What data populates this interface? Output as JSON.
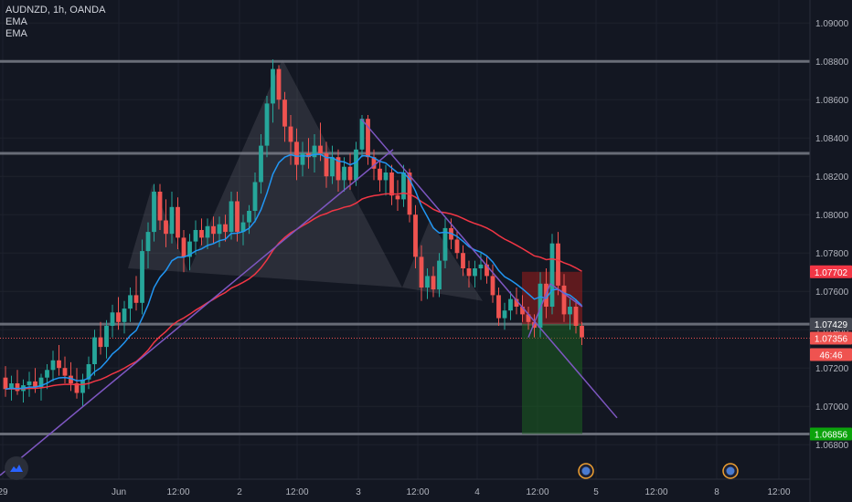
{
  "legend": {
    "symbol": "AUDNZD, 1h, OANDA",
    "ind1": "EMA",
    "ind2": "EMA"
  },
  "colors": {
    "background": "#131722",
    "up": "#26a69a",
    "down": "#ef5350",
    "ema_fast": "#2196f3",
    "ema_slow": "#f23645",
    "trendline": "#7e57c2",
    "level": "#787b86",
    "target_zone": "#1b5e20",
    "stop_zone": "#7f1d1d",
    "pattern": "#9598a1"
  },
  "chart_data": {
    "type": "candlestick",
    "symbol": "AUDNZD",
    "interval": "1h",
    "broker": "OANDA",
    "ylim": [
      1.0662,
      1.0912
    ],
    "y_ticks": [
      "1.09000",
      "1.08800",
      "1.08600",
      "1.08400",
      "1.08200",
      "1.08000",
      "1.07800",
      "1.07600",
      "1.07400",
      "1.07200",
      "1.07000",
      "1.06800"
    ],
    "x_ticks": [
      "29",
      "Jun",
      "12:00",
      "2",
      "12:00",
      "3",
      "12:00",
      "4",
      "12:00",
      "5",
      "12:00",
      "8",
      "12:00"
    ],
    "candles": [
      [
        1.0715,
        1.0721,
        1.0705,
        1.0709
      ],
      [
        1.0709,
        1.0716,
        1.0703,
        1.0712
      ],
      [
        1.0712,
        1.0719,
        1.0706,
        1.0708
      ],
      [
        1.0708,
        1.0714,
        1.0702,
        1.0711
      ],
      [
        1.0711,
        1.0718,
        1.0705,
        1.0713
      ],
      [
        1.0713,
        1.072,
        1.0707,
        1.071
      ],
      [
        1.071,
        1.0717,
        1.0703,
        1.0715
      ],
      [
        1.0715,
        1.0722,
        1.0709,
        1.0719
      ],
      [
        1.0719,
        1.0729,
        1.0713,
        1.0724
      ],
      [
        1.0724,
        1.0732,
        1.0716,
        1.072
      ],
      [
        1.072,
        1.0726,
        1.0712,
        1.0716
      ],
      [
        1.0716,
        1.0723,
        1.0708,
        1.0712
      ],
      [
        1.0712,
        1.072,
        1.0704,
        1.0707
      ],
      [
        1.0707,
        1.0717,
        1.07,
        1.0714
      ],
      [
        1.0714,
        1.0726,
        1.0709,
        1.0722
      ],
      [
        1.0722,
        1.074,
        1.0716,
        1.0736
      ],
      [
        1.0736,
        1.0744,
        1.0727,
        1.0731
      ],
      [
        1.0731,
        1.0745,
        1.0725,
        1.0742
      ],
      [
        1.0742,
        1.0753,
        1.0736,
        1.0749
      ],
      [
        1.0749,
        1.0757,
        1.074,
        1.0744
      ],
      [
        1.0744,
        1.0755,
        1.0738,
        1.0751
      ],
      [
        1.0751,
        1.0762,
        1.0744,
        1.0758
      ],
      [
        1.0758,
        1.0768,
        1.075,
        1.0754
      ],
      [
        1.0754,
        1.0787,
        1.0748,
        1.0781
      ],
      [
        1.0781,
        1.0796,
        1.0772,
        1.0791
      ],
      [
        1.0791,
        1.0816,
        1.0786,
        1.0812
      ],
      [
        1.0812,
        1.0816,
        1.0792,
        1.0797
      ],
      [
        1.0797,
        1.0808,
        1.0783,
        1.079
      ],
      [
        1.079,
        1.0812,
        1.0785,
        1.0804
      ],
      [
        1.0804,
        1.0809,
        1.0782,
        1.0788
      ],
      [
        1.0788,
        1.0792,
        1.077,
        1.0778
      ],
      [
        1.0778,
        1.079,
        1.0771,
        1.0786
      ],
      [
        1.0786,
        1.0797,
        1.0779,
        1.0792
      ],
      [
        1.0792,
        1.0798,
        1.0784,
        1.0788
      ],
      [
        1.0788,
        1.0798,
        1.0782,
        1.0794
      ],
      [
        1.0794,
        1.0799,
        1.0785,
        1.079
      ],
      [
        1.079,
        1.0799,
        1.0783,
        1.0795
      ],
      [
        1.0795,
        1.08,
        1.0786,
        1.0791
      ],
      [
        1.0791,
        1.0812,
        1.0787,
        1.0807
      ],
      [
        1.0807,
        1.0812,
        1.0786,
        1.0791
      ],
      [
        1.0791,
        1.08,
        1.0784,
        1.0796
      ],
      [
        1.0796,
        1.0805,
        1.079,
        1.0802
      ],
      [
        1.0802,
        1.0822,
        1.0796,
        1.0817
      ],
      [
        1.0817,
        1.0842,
        1.0811,
        1.0836
      ],
      [
        1.0836,
        1.0862,
        1.083,
        1.0858
      ],
      [
        1.0858,
        1.0881,
        1.0848,
        1.0876
      ],
      [
        1.0876,
        1.0878,
        1.0855,
        1.086
      ],
      [
        1.086,
        1.0864,
        1.0838,
        1.0846
      ],
      [
        1.0846,
        1.0852,
        1.0826,
        1.0838
      ],
      [
        1.0838,
        1.0845,
        1.0818,
        1.0826
      ],
      [
        1.0826,
        1.0838,
        1.082,
        1.0832
      ],
      [
        1.0832,
        1.084,
        1.0824,
        1.083
      ],
      [
        1.083,
        1.0842,
        1.0822,
        1.0836
      ],
      [
        1.0836,
        1.0848,
        1.0828,
        1.0832
      ],
      [
        1.0832,
        1.0838,
        1.0814,
        1.082
      ],
      [
        1.082,
        1.0836,
        1.0816,
        1.083
      ],
      [
        1.083,
        1.0834,
        1.0812,
        1.0818
      ],
      [
        1.0818,
        1.083,
        1.0812,
        1.0825
      ],
      [
        1.0825,
        1.0832,
        1.0813,
        1.0818
      ],
      [
        1.0818,
        1.0838,
        1.0815,
        1.0834
      ],
      [
        1.0834,
        1.0852,
        1.083,
        1.085
      ],
      [
        1.085,
        1.0852,
        1.0826,
        1.083
      ],
      [
        1.083,
        1.0834,
        1.0818,
        1.0824
      ],
      [
        1.0824,
        1.0828,
        1.0812,
        1.0818
      ],
      [
        1.0818,
        1.0826,
        1.081,
        1.0822
      ],
      [
        1.0822,
        1.0826,
        1.0805,
        1.081
      ],
      [
        1.081,
        1.0818,
        1.0802,
        1.0808
      ],
      [
        1.0808,
        1.0826,
        1.0804,
        1.0822
      ],
      [
        1.0822,
        1.0824,
        1.0796,
        1.08
      ],
      [
        1.08,
        1.0805,
        1.0772,
        1.0778
      ],
      [
        1.0778,
        1.0784,
        1.0755,
        1.0762
      ],
      [
        1.0762,
        1.0772,
        1.0756,
        1.0768
      ],
      [
        1.0768,
        1.0773,
        1.0757,
        1.0761
      ],
      [
        1.0761,
        1.078,
        1.0757,
        1.0776
      ],
      [
        1.0776,
        1.0798,
        1.0772,
        1.0793
      ],
      [
        1.0793,
        1.0798,
        1.0782,
        1.0787
      ],
      [
        1.0787,
        1.0792,
        1.0777,
        1.078
      ],
      [
        1.078,
        1.0784,
        1.0768,
        1.0772
      ],
      [
        1.0772,
        1.0776,
        1.0762,
        1.0768
      ],
      [
        1.0768,
        1.0776,
        1.0762,
        1.0772
      ],
      [
        1.0772,
        1.078,
        1.0766,
        1.0774
      ],
      [
        1.0774,
        1.0778,
        1.0764,
        1.0768
      ],
      [
        1.0768,
        1.0774,
        1.0754,
        1.0758
      ],
      [
        1.0758,
        1.0762,
        1.0742,
        1.0746
      ],
      [
        1.0746,
        1.0754,
        1.074,
        1.075
      ],
      [
        1.075,
        1.076,
        1.0745,
        1.0756
      ],
      [
        1.0756,
        1.0762,
        1.0748,
        1.0752
      ],
      [
        1.0752,
        1.0758,
        1.0744,
        1.0748
      ],
      [
        1.0748,
        1.0752,
        1.074,
        1.0744
      ],
      [
        1.0744,
        1.0748,
        1.0736,
        1.0741
      ],
      [
        1.0741,
        1.077,
        1.0736,
        1.0764
      ],
      [
        1.0764,
        1.0772,
        1.0746,
        1.0752
      ],
      [
        1.0752,
        1.079,
        1.0748,
        1.0785
      ],
      [
        1.0785,
        1.0791,
        1.0758,
        1.0763
      ],
      [
        1.0763,
        1.0769,
        1.0744,
        1.0748
      ],
      [
        1.0748,
        1.0756,
        1.074,
        1.0752
      ],
      [
        1.0752,
        1.0756,
        1.0738,
        1.0742
      ],
      [
        1.0742,
        1.0744,
        1.0732,
        1.0736
      ]
    ],
    "ema_fast": {
      "name": "EMA",
      "color": "#2196f3"
    },
    "ema_slow": {
      "name": "EMA",
      "color": "#f23645"
    },
    "horizontal_levels": [
      1.088,
      1.0832,
      1.07429,
      1.06856
    ],
    "price_labels": [
      {
        "text": "1.07702",
        "color": "#f23645",
        "value": 1.07702
      },
      {
        "text": "1.07429",
        "color": "#434651",
        "value": 1.07429
      },
      {
        "text": "1.07356",
        "color": "#ef5350",
        "value": 1.07356
      },
      {
        "text": "46:46",
        "color": "#ef5350",
        "value": 1.0727
      },
      {
        "text": "1.06856",
        "color": "#0ca30c",
        "value": 1.06856
      }
    ],
    "position": {
      "entry": 1.07429,
      "stop": 1.07702,
      "target": 1.06856
    }
  }
}
